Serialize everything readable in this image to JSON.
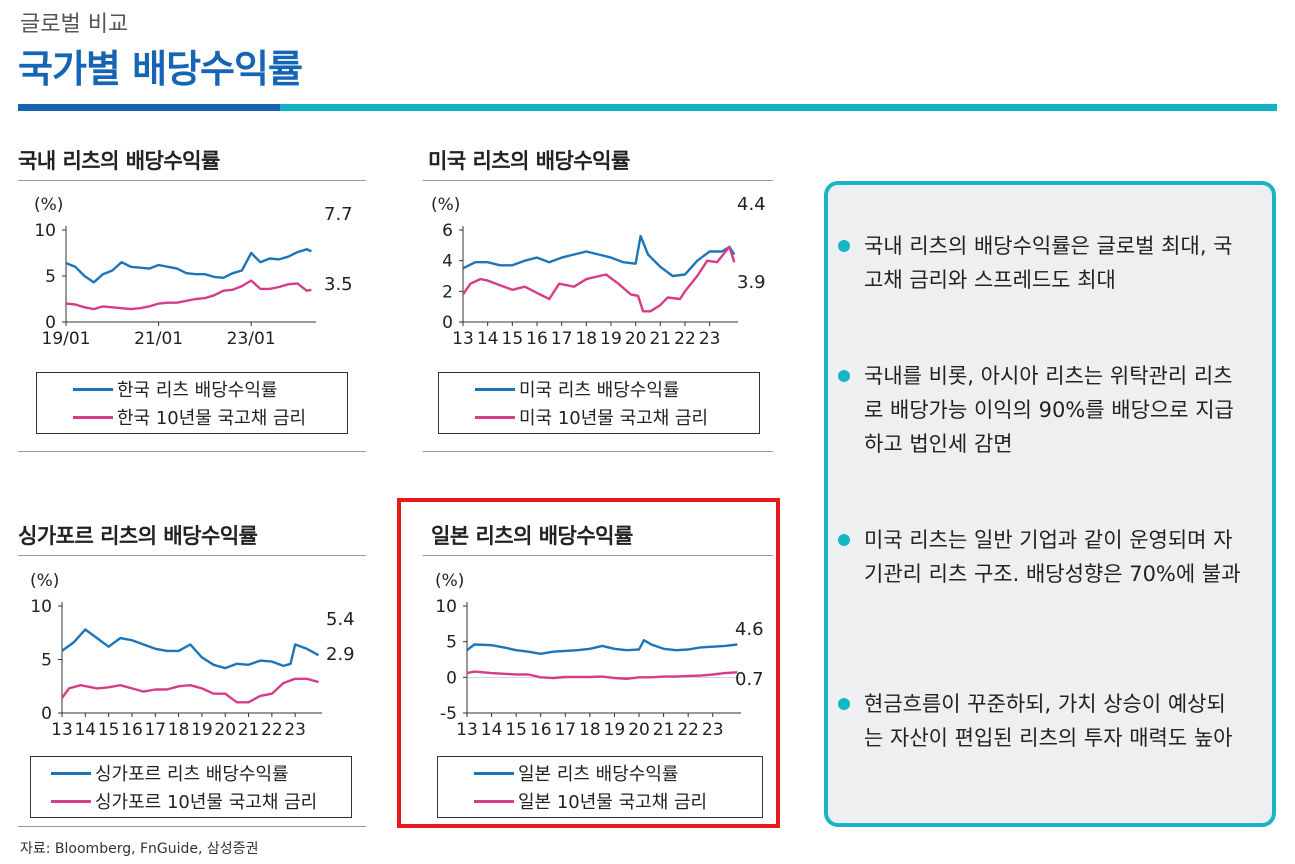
{
  "header": {
    "kicker": "글로벌 비교",
    "title": "국가별 배당수익률"
  },
  "colors": {
    "reit": "#1b75bb",
    "bond": "#d63c87",
    "accent_blue": "#1565b4",
    "accent_teal": "#17b6c4",
    "highlight": "#e8191b"
  },
  "panels": [
    {
      "id": "korea",
      "title": "국내 리츠의 배당수익률",
      "unit": "(%)",
      "legend": [
        "한국 리츠 배당수익률",
        "한국 10년물 국고채 금리"
      ],
      "end_labels": [
        "7.7",
        "3.5"
      ]
    },
    {
      "id": "us",
      "title": "미국 리츠의 배당수익률",
      "unit": "(%)",
      "legend": [
        "미국 리츠 배당수익률",
        "미국 10년물 국고채 금리"
      ],
      "end_labels": [
        "4.4",
        "3.9"
      ]
    },
    {
      "id": "singapore",
      "title": "싱가포르 리츠의 배당수익률",
      "unit": "(%)",
      "legend": [
        "싱가포르 리츠 배당수익률",
        "싱가포르 10년물 국고채 금리"
      ],
      "end_labels": [
        "5.4",
        "2.9"
      ]
    },
    {
      "id": "japan",
      "title": "일본 리츠의 배당수익률",
      "unit": "(%)",
      "legend": [
        "일본 리츠 배당수익률",
        "일본 10년물 국고채 금리"
      ],
      "end_labels": [
        "4.6",
        "0.7"
      ]
    }
  ],
  "chart_data": [
    {
      "type": "line",
      "title": "국내 리츠의 배당수익률",
      "ylabel": "(%)",
      "ylim": [
        0,
        10
      ],
      "yticks": [
        0,
        5,
        10
      ],
      "xlim": [
        2019.0,
        2024.4
      ],
      "xticks": [
        {
          "x": 2019.0,
          "label": "19/01"
        },
        {
          "x": 2021.0,
          "label": "21/01"
        },
        {
          "x": 2023.0,
          "label": "23/01"
        }
      ],
      "series": [
        {
          "name": "한국 리츠 배당수익률",
          "color": "#1b75bb",
          "x": [
            2019.0,
            2019.2,
            2019.4,
            2019.6,
            2019.8,
            2020.0,
            2020.2,
            2020.4,
            2020.6,
            2020.8,
            2021.0,
            2021.2,
            2021.4,
            2021.6,
            2021.8,
            2022.0,
            2022.2,
            2022.4,
            2022.6,
            2022.8,
            2023.0,
            2023.2,
            2023.4,
            2023.6,
            2023.8,
            2024.0,
            2024.2,
            2024.3
          ],
          "y": [
            6.4,
            6.0,
            5.0,
            4.3,
            5.2,
            5.6,
            6.5,
            6.0,
            5.9,
            5.8,
            6.2,
            6.0,
            5.8,
            5.3,
            5.2,
            5.2,
            4.9,
            4.8,
            5.3,
            5.6,
            7.5,
            6.5,
            6.9,
            6.8,
            7.1,
            7.6,
            7.9,
            7.7
          ]
        },
        {
          "name": "한국 10년물 국고채 금리",
          "color": "#d63c87",
          "x": [
            2019.0,
            2019.2,
            2019.4,
            2019.6,
            2019.8,
            2020.0,
            2020.2,
            2020.4,
            2020.6,
            2020.8,
            2021.0,
            2021.2,
            2021.4,
            2021.6,
            2021.8,
            2022.0,
            2022.2,
            2022.4,
            2022.6,
            2022.8,
            2023.0,
            2023.2,
            2023.4,
            2023.6,
            2023.8,
            2024.0,
            2024.2,
            2024.3
          ],
          "y": [
            2.0,
            1.9,
            1.6,
            1.4,
            1.7,
            1.6,
            1.5,
            1.4,
            1.5,
            1.7,
            2.0,
            2.1,
            2.1,
            2.3,
            2.5,
            2.6,
            2.9,
            3.4,
            3.5,
            3.9,
            4.5,
            3.6,
            3.6,
            3.8,
            4.1,
            4.2,
            3.4,
            3.5
          ]
        }
      ]
    },
    {
      "type": "line",
      "title": "미국 리츠의 배당수익률",
      "ylabel": "(%)",
      "ylim": [
        0,
        6
      ],
      "yticks": [
        0,
        2,
        4,
        6
      ],
      "xlim": [
        2013,
        2024.15
      ],
      "xticks": [
        {
          "x": 2013,
          "label": "13"
        },
        {
          "x": 2014,
          "label": "14"
        },
        {
          "x": 2015,
          "label": "15"
        },
        {
          "x": 2016,
          "label": "16"
        },
        {
          "x": 2017,
          "label": "17"
        },
        {
          "x": 2018,
          "label": "18"
        },
        {
          "x": 2019,
          "label": "19"
        },
        {
          "x": 2020,
          "label": "20"
        },
        {
          "x": 2021,
          "label": "21"
        },
        {
          "x": 2022,
          "label": "22"
        },
        {
          "x": 2023,
          "label": "23"
        }
      ],
      "series": [
        {
          "name": "미국 리츠 배당수익률",
          "color": "#1b75bb",
          "x": [
            2013.0,
            2013.5,
            2014.0,
            2014.5,
            2015.0,
            2015.5,
            2016.0,
            2016.5,
            2017.0,
            2017.5,
            2018.0,
            2018.5,
            2019.0,
            2019.5,
            2020.0,
            2020.2,
            2020.5,
            2021.0,
            2021.5,
            2022.0,
            2022.5,
            2023.0,
            2023.5,
            2023.8,
            2024.0
          ],
          "y": [
            3.5,
            3.9,
            3.9,
            3.7,
            3.7,
            4.0,
            4.2,
            3.9,
            4.2,
            4.4,
            4.6,
            4.4,
            4.2,
            3.9,
            3.8,
            5.6,
            4.4,
            3.6,
            3.0,
            3.1,
            4.0,
            4.6,
            4.6,
            4.9,
            4.4
          ]
        },
        {
          "name": "미국 10년물 국고채 금리",
          "color": "#d63c87",
          "x": [
            2013.0,
            2013.3,
            2013.7,
            2014.0,
            2014.5,
            2015.0,
            2015.5,
            2016.0,
            2016.5,
            2016.9,
            2017.5,
            2018.0,
            2018.8,
            2019.3,
            2019.8,
            2020.1,
            2020.3,
            2020.6,
            2021.0,
            2021.3,
            2021.8,
            2022.0,
            2022.5,
            2022.9,
            2023.3,
            2023.8,
            2024.0
          ],
          "y": [
            1.8,
            2.5,
            2.8,
            2.7,
            2.4,
            2.1,
            2.3,
            1.9,
            1.5,
            2.5,
            2.3,
            2.8,
            3.1,
            2.5,
            1.8,
            1.7,
            0.7,
            0.7,
            1.1,
            1.6,
            1.5,
            2.0,
            3.0,
            4.0,
            3.9,
            4.9,
            3.9
          ]
        }
      ]
    },
    {
      "type": "line",
      "title": "싱가포르 리츠의 배당수익률",
      "ylabel": "(%)",
      "ylim": [
        0,
        10
      ],
      "yticks": [
        0,
        5,
        10
      ],
      "xlim": [
        2013,
        2024.15
      ],
      "xticks": [
        {
          "x": 2013,
          "label": "13"
        },
        {
          "x": 2014,
          "label": "14"
        },
        {
          "x": 2015,
          "label": "15"
        },
        {
          "x": 2016,
          "label": "16"
        },
        {
          "x": 2017,
          "label": "17"
        },
        {
          "x": 2018,
          "label": "18"
        },
        {
          "x": 2019,
          "label": "19"
        },
        {
          "x": 2020,
          "label": "20"
        },
        {
          "x": 2021,
          "label": "21"
        },
        {
          "x": 2022,
          "label": "22"
        },
        {
          "x": 2023,
          "label": "23"
        }
      ],
      "series": [
        {
          "name": "싱가포르 리츠 배당수익률",
          "color": "#1b75bb",
          "x": [
            2013.0,
            2013.5,
            2014.0,
            2014.5,
            2015.0,
            2015.5,
            2016.0,
            2016.5,
            2017.0,
            2017.5,
            2018.0,
            2018.5,
            2019.0,
            2019.5,
            2020.0,
            2020.5,
            2021.0,
            2021.5,
            2022.0,
            2022.5,
            2022.8,
            2023.0,
            2023.5,
            2024.0
          ],
          "y": [
            5.8,
            6.6,
            7.8,
            7.0,
            6.2,
            7.0,
            6.8,
            6.4,
            6.0,
            5.8,
            5.8,
            6.4,
            5.2,
            4.5,
            4.2,
            4.6,
            4.5,
            4.9,
            4.8,
            4.4,
            4.6,
            6.4,
            6.0,
            5.4
          ]
        },
        {
          "name": "싱가포르 10년물 국고채 금리",
          "color": "#d63c87",
          "x": [
            2013.0,
            2013.3,
            2013.8,
            2014.5,
            2015.0,
            2015.5,
            2016.0,
            2016.5,
            2017.0,
            2017.5,
            2018.0,
            2018.5,
            2019.0,
            2019.5,
            2020.0,
            2020.5,
            2021.0,
            2021.5,
            2022.0,
            2022.5,
            2023.0,
            2023.5,
            2024.0
          ],
          "y": [
            1.4,
            2.3,
            2.6,
            2.3,
            2.4,
            2.6,
            2.3,
            2.0,
            2.2,
            2.2,
            2.5,
            2.6,
            2.3,
            1.8,
            1.8,
            1.0,
            1.0,
            1.6,
            1.8,
            2.8,
            3.2,
            3.2,
            2.9
          ]
        }
      ]
    },
    {
      "type": "line",
      "title": "일본 리츠의 배당수익률",
      "ylabel": "(%)",
      "ylim": [
        -5,
        10
      ],
      "yticks": [
        -5,
        0,
        5,
        10
      ],
      "xlim": [
        2013,
        2024.15
      ],
      "xticks": [
        {
          "x": 2013,
          "label": "13"
        },
        {
          "x": 2014,
          "label": "14"
        },
        {
          "x": 2015,
          "label": "15"
        },
        {
          "x": 2016,
          "label": "16"
        },
        {
          "x": 2017,
          "label": "17"
        },
        {
          "x": 2018,
          "label": "18"
        },
        {
          "x": 2019,
          "label": "19"
        },
        {
          "x": 2020,
          "label": "20"
        },
        {
          "x": 2021,
          "label": "21"
        },
        {
          "x": 2022,
          "label": "22"
        },
        {
          "x": 2023,
          "label": "23"
        }
      ],
      "series": [
        {
          "name": "일본 리츠 배당수익률",
          "color": "#1b75bb",
          "x": [
            2013.0,
            2013.3,
            2014.0,
            2014.5,
            2015.0,
            2015.5,
            2016.0,
            2016.5,
            2017.0,
            2017.5,
            2018.0,
            2018.5,
            2019.0,
            2019.5,
            2020.0,
            2020.2,
            2020.5,
            2021.0,
            2021.5,
            2022.0,
            2022.5,
            2023.0,
            2023.5,
            2024.0
          ],
          "y": [
            3.8,
            4.6,
            4.5,
            4.2,
            3.8,
            3.6,
            3.3,
            3.6,
            3.7,
            3.8,
            4.0,
            4.4,
            4.0,
            3.8,
            3.9,
            5.2,
            4.6,
            4.0,
            3.8,
            3.9,
            4.2,
            4.3,
            4.4,
            4.6
          ]
        },
        {
          "name": "일본 10년물 국고채 금리",
          "color": "#d63c87",
          "x": [
            2013.0,
            2013.3,
            2014.0,
            2014.5,
            2015.0,
            2015.5,
            2016.0,
            2016.5,
            2017.0,
            2017.5,
            2018.0,
            2018.5,
            2019.0,
            2019.5,
            2020.0,
            2020.5,
            2021.0,
            2021.5,
            2022.0,
            2022.5,
            2023.0,
            2023.5,
            2024.0
          ],
          "y": [
            0.6,
            0.8,
            0.6,
            0.5,
            0.4,
            0.4,
            0.0,
            -0.1,
            0.05,
            0.05,
            0.05,
            0.1,
            -0.1,
            -0.2,
            0.0,
            0.0,
            0.1,
            0.1,
            0.2,
            0.25,
            0.4,
            0.6,
            0.7
          ]
        }
      ]
    }
  ],
  "bullets": [
    "국내 리츠의 배당수익률은 글로벌 최대, 국고채 금리와 스프레드도 최대",
    "국내를 비롯, 아시아 리츠는 위탁관리 리츠로 배당가능 이익의 90%를 배당으로 지급하고 법인세 감면",
    "미국 리츠는 일반 기업과 같이 운영되며 자기관리 리츠 구조. 배당성향은 70%에 불과",
    "현금흐름이 꾸준하되, 가치 상승이 예상되는 자산이 편입된 리츠의 투자 매력도 높아"
  ],
  "source": "자료: Bloomberg, FnGuide, 삼성증권"
}
